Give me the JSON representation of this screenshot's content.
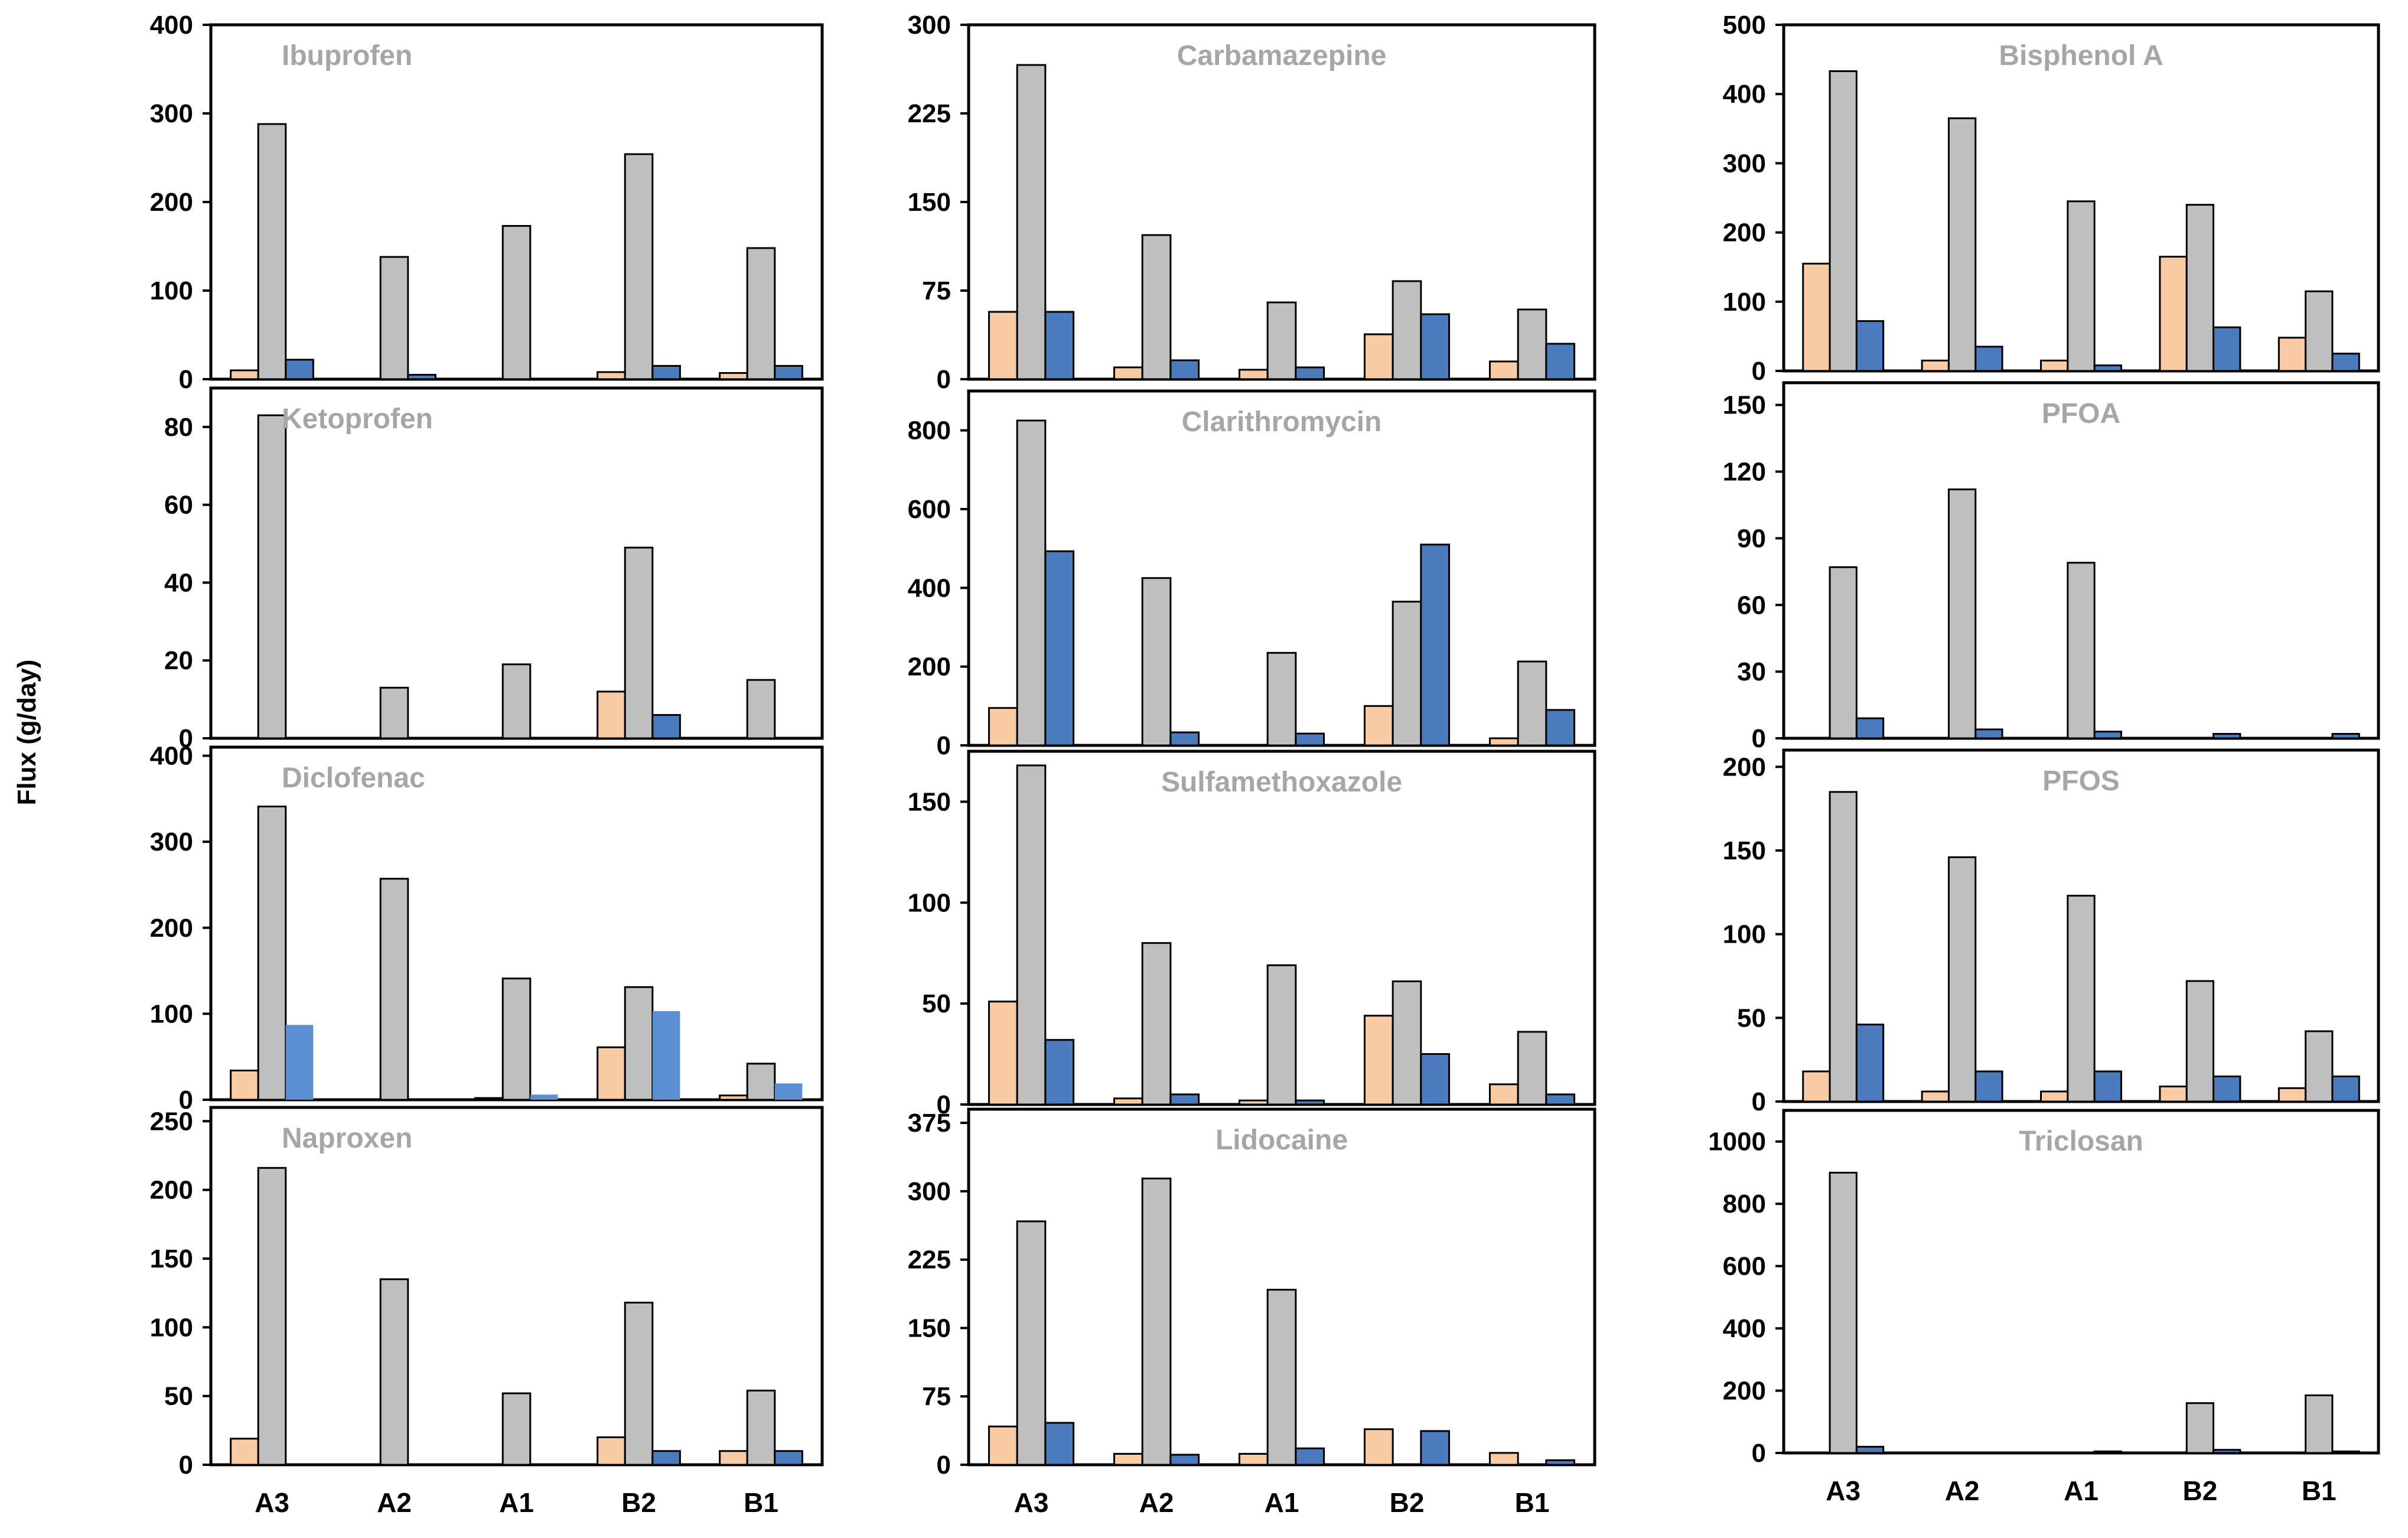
{
  "ylabel": "Flux (g/day)",
  "colors": {
    "orange": "#f8cba4",
    "gray": "#bfbfbf",
    "blue": "#4b7bbd",
    "blue_light": "#5b8fd1",
    "title": "#a6a6a6",
    "frame": "#000000"
  },
  "chart_data": [
    {
      "type": "bar",
      "title": "Ibuprofen",
      "categories": [
        "A3",
        "A2",
        "A1",
        "B2",
        "B1"
      ],
      "ylim": [
        0,
        400
      ],
      "yticks": [
        "0",
        "100",
        "200",
        "300",
        "400"
      ],
      "series": [
        {
          "name": "orange",
          "values": [
            10,
            0,
            0,
            8,
            7
          ]
        },
        {
          "name": "gray",
          "values": [
            288,
            138,
            173,
            254,
            148
          ]
        },
        {
          "name": "blue",
          "values": [
            22,
            5,
            0,
            15,
            15
          ]
        }
      ]
    },
    {
      "type": "bar",
      "title": "Carbamazepine",
      "categories": [
        "A3",
        "A2",
        "A1",
        "B2",
        "B1"
      ],
      "ylim": [
        0,
        300
      ],
      "yticks": [
        "0",
        "75",
        "150",
        "225",
        "300"
      ],
      "series": [
        {
          "name": "orange",
          "values": [
            57,
            10,
            8,
            38,
            15
          ]
        },
        {
          "name": "gray",
          "values": [
            266,
            122,
            65,
            83,
            59
          ]
        },
        {
          "name": "blue",
          "values": [
            57,
            16,
            10,
            55,
            30
          ]
        }
      ]
    },
    {
      "type": "bar",
      "title": "Bisphenol A",
      "categories": [
        "A3",
        "A2",
        "A1",
        "B2",
        "B1"
      ],
      "ylim": [
        0,
        500
      ],
      "yticks": [
        "0",
        "100",
        "200",
        "300",
        "400",
        "500"
      ],
      "series": [
        {
          "name": "orange",
          "values": [
            155,
            15,
            15,
            165,
            48
          ]
        },
        {
          "name": "gray",
          "values": [
            433,
            365,
            245,
            240,
            115
          ]
        },
        {
          "name": "blue",
          "values": [
            72,
            35,
            8,
            63,
            25
          ]
        }
      ]
    },
    {
      "type": "bar",
      "title": "Ketoprofen",
      "categories": [
        "A3",
        "A2",
        "A1",
        "B2",
        "B1"
      ],
      "ylim": [
        0,
        90
      ],
      "yticks": [
        "0",
        "20",
        "40",
        "60",
        "80"
      ],
      "series": [
        {
          "name": "orange",
          "values": [
            0,
            0,
            0,
            12,
            0
          ]
        },
        {
          "name": "gray",
          "values": [
            83,
            13,
            19,
            49,
            15
          ]
        },
        {
          "name": "blue",
          "values": [
            0,
            0,
            0,
            6,
            0
          ]
        }
      ]
    },
    {
      "type": "bar",
      "title": "Clarithromycin",
      "categories": [
        "A3",
        "A2",
        "A1",
        "B2",
        "B1"
      ],
      "ylim": [
        0,
        900
      ],
      "yticks": [
        "0",
        "200",
        "400",
        "600",
        "800"
      ],
      "series": [
        {
          "name": "orange",
          "values": [
            95,
            0,
            0,
            100,
            18
          ]
        },
        {
          "name": "gray",
          "values": [
            825,
            425,
            235,
            365,
            213
          ]
        },
        {
          "name": "blue",
          "values": [
            493,
            33,
            30,
            510,
            90
          ]
        }
      ]
    },
    {
      "type": "bar",
      "title": "PFOA",
      "categories": [
        "A3",
        "A2",
        "A1",
        "B2",
        "B1"
      ],
      "ylim": [
        0,
        160
      ],
      "yticks": [
        "0",
        "30",
        "60",
        "90",
        "120",
        "150"
      ],
      "series": [
        {
          "name": "orange",
          "values": [
            0,
            0,
            0,
            0,
            0
          ]
        },
        {
          "name": "gray",
          "values": [
            77,
            112,
            79,
            0,
            0
          ]
        },
        {
          "name": "blue",
          "values": [
            9,
            4,
            3,
            2,
            2
          ]
        }
      ]
    },
    {
      "type": "bar",
      "title": "Diclofenac",
      "categories": [
        "A3",
        "A2",
        "A1",
        "B2",
        "B1"
      ],
      "ylim": [
        0,
        410
      ],
      "yticks": [
        "0",
        "100",
        "200",
        "300",
        "400"
      ],
      "series": [
        {
          "name": "orange",
          "values": [
            34,
            0,
            2,
            61,
            5
          ]
        },
        {
          "name": "gray",
          "values": [
            341,
            257,
            141,
            131,
            42
          ]
        },
        {
          "name": "blue",
          "values": [
            87,
            0,
            6,
            103,
            19
          ]
        }
      ]
    },
    {
      "type": "bar",
      "title": "Sulfamethoxazole",
      "categories": [
        "A3",
        "A2",
        "A1",
        "B2",
        "B1"
      ],
      "ylim": [
        0,
        175
      ],
      "yticks": [
        "0",
        "50",
        "100",
        "150"
      ],
      "series": [
        {
          "name": "orange",
          "values": [
            51,
            3,
            2,
            44,
            10
          ]
        },
        {
          "name": "gray",
          "values": [
            168,
            80,
            69,
            61,
            36
          ]
        },
        {
          "name": "blue",
          "values": [
            32,
            5,
            2,
            25,
            5
          ]
        }
      ]
    },
    {
      "type": "bar",
      "title": "PFOS",
      "categories": [
        "A3",
        "A2",
        "A1",
        "B2",
        "B1"
      ],
      "ylim": [
        0,
        210
      ],
      "yticks": [
        "0",
        "50",
        "100",
        "150",
        "200"
      ],
      "series": [
        {
          "name": "orange",
          "values": [
            18,
            6,
            6,
            9,
            8
          ]
        },
        {
          "name": "gray",
          "values": [
            185,
            146,
            123,
            72,
            42
          ]
        },
        {
          "name": "blue",
          "values": [
            46,
            18,
            18,
            15,
            15
          ]
        }
      ]
    },
    {
      "type": "bar",
      "title": "Naproxen",
      "categories": [
        "A3",
        "A2",
        "A1",
        "B2",
        "B1"
      ],
      "ylim": [
        0,
        260
      ],
      "yticks": [
        "0",
        "50",
        "100",
        "150",
        "200",
        "250"
      ],
      "series": [
        {
          "name": "orange",
          "values": [
            19,
            0,
            0,
            20,
            10
          ]
        },
        {
          "name": "gray",
          "values": [
            216,
            135,
            52,
            118,
            54
          ]
        },
        {
          "name": "blue",
          "values": [
            0,
            0,
            0,
            10,
            10
          ]
        }
      ]
    },
    {
      "type": "bar",
      "title": "Lidocaine",
      "categories": [
        "A3",
        "A2",
        "A1",
        "B2",
        "B1"
      ],
      "ylim": [
        0,
        390
      ],
      "yticks": [
        "0",
        "75",
        "150",
        "225",
        "300",
        "375"
      ],
      "series": [
        {
          "name": "orange",
          "values": [
            42,
            12,
            12,
            39,
            13
          ]
        },
        {
          "name": "gray",
          "values": [
            267,
            314,
            192,
            0,
            0
          ]
        },
        {
          "name": "blue",
          "values": [
            46,
            11,
            18,
            37,
            5
          ]
        }
      ]
    },
    {
      "type": "bar",
      "title": "Triclosan",
      "categories": [
        "A3",
        "A2",
        "A1",
        "B2",
        "B1"
      ],
      "ylim": [
        0,
        1100
      ],
      "yticks": [
        "0",
        "200",
        "400",
        "600",
        "800",
        "1000"
      ],
      "series": [
        {
          "name": "orange",
          "values": [
            0,
            0,
            0,
            0,
            0
          ]
        },
        {
          "name": "gray",
          "values": [
            900,
            0,
            0,
            160,
            185
          ]
        },
        {
          "name": "blue",
          "values": [
            20,
            0,
            5,
            10,
            5
          ]
        }
      ]
    }
  ]
}
